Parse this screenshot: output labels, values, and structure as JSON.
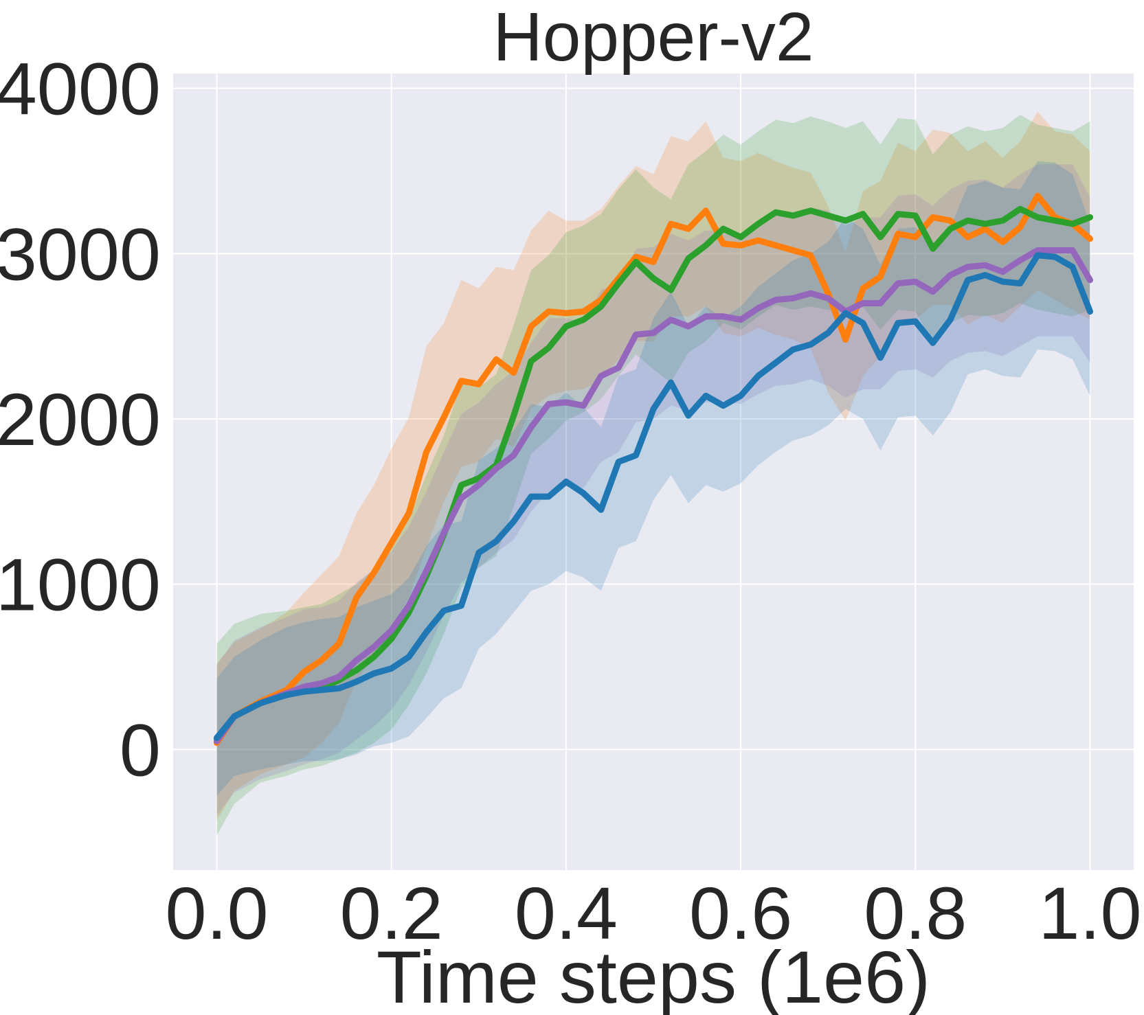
{
  "chart_data": {
    "type": "line",
    "title": "Hopper-v2",
    "xlabel": "Time steps (1e6)",
    "ylabel": "",
    "xlim": [
      -0.05,
      1.05
    ],
    "ylim": [
      -730,
      4090
    ],
    "x_ticks": [
      "0.0",
      "0.2",
      "0.4",
      "0.6",
      "0.8",
      "1.0"
    ],
    "x_tick_values": [
      0.0,
      0.2,
      0.4,
      0.6,
      0.8,
      1.0
    ],
    "y_ticks": [
      "0",
      "1000",
      "2000",
      "3000",
      "4000"
    ],
    "y_tick_values": [
      0,
      1000,
      2000,
      3000,
      4000
    ],
    "grid": true,
    "background": "#EAEAF2",
    "legend": "none",
    "series": [
      {
        "color": "#ff7f0e",
        "x": [
          0.0,
          0.02,
          0.05,
          0.08,
          0.1,
          0.12,
          0.14,
          0.16,
          0.18,
          0.2,
          0.22,
          0.24,
          0.26,
          0.28,
          0.3,
          0.32,
          0.34,
          0.36,
          0.38,
          0.4,
          0.42,
          0.44,
          0.46,
          0.48,
          0.5,
          0.52,
          0.54,
          0.56,
          0.58,
          0.6,
          0.62,
          0.64,
          0.66,
          0.68,
          0.7,
          0.72,
          0.74,
          0.76,
          0.78,
          0.8,
          0.82,
          0.84,
          0.86,
          0.88,
          0.9,
          0.92,
          0.94,
          0.96,
          0.98,
          1.0
        ],
        "y": [
          40,
          200,
          290,
          360,
          470,
          540,
          640,
          920,
          1070,
          1250,
          1430,
          1800,
          2010,
          2230,
          2210,
          2360,
          2280,
          2560,
          2650,
          2640,
          2650,
          2720,
          2850,
          2980,
          2950,
          3180,
          3150,
          3260,
          3060,
          3050,
          3080,
          3050,
          3020,
          2990,
          2760,
          2480,
          2790,
          2860,
          3120,
          3100,
          3220,
          3200,
          3100,
          3150,
          3070,
          3160,
          3350,
          3220,
          3180,
          3090
        ],
        "lower": [
          -430,
          -250,
          -150,
          -90,
          -50,
          40,
          160,
          420,
          560,
          740,
          920,
          1220,
          1500,
          1710,
          1740,
          1880,
          1830,
          2060,
          2140,
          2170,
          2180,
          2230,
          2360,
          2470,
          2470,
          2620,
          2620,
          2680,
          2520,
          2500,
          2550,
          2510,
          2480,
          2430,
          2160,
          1990,
          2260,
          2380,
          2590,
          2600,
          2690,
          2690,
          2570,
          2630,
          2580,
          2680,
          2780,
          2720,
          2660,
          2600
        ],
        "upper": [
          520,
          650,
          730,
          830,
          950,
          1060,
          1170,
          1430,
          1600,
          1820,
          2010,
          2440,
          2580,
          2840,
          2790,
          2920,
          2900,
          3140,
          3260,
          3200,
          3200,
          3270,
          3410,
          3530,
          3480,
          3710,
          3680,
          3800,
          3580,
          3560,
          3610,
          3560,
          3520,
          3490,
          3290,
          3010,
          3380,
          3440,
          3670,
          3620,
          3750,
          3730,
          3620,
          3680,
          3580,
          3680,
          3860,
          3740,
          3720,
          3620
        ]
      },
      {
        "color": "#2ca02c",
        "x": [
          0.0,
          0.02,
          0.05,
          0.08,
          0.1,
          0.12,
          0.14,
          0.16,
          0.18,
          0.2,
          0.22,
          0.24,
          0.26,
          0.28,
          0.3,
          0.32,
          0.34,
          0.36,
          0.38,
          0.4,
          0.42,
          0.44,
          0.46,
          0.48,
          0.5,
          0.52,
          0.54,
          0.56,
          0.58,
          0.6,
          0.62,
          0.64,
          0.66,
          0.68,
          0.7,
          0.72,
          0.74,
          0.76,
          0.78,
          0.8,
          0.82,
          0.84,
          0.86,
          0.88,
          0.9,
          0.92,
          0.94,
          0.96,
          0.98,
          1.0
        ],
        "y": [
          60,
          200,
          280,
          340,
          360,
          370,
          420,
          480,
          560,
          670,
          830,
          1050,
          1300,
          1600,
          1640,
          1720,
          2020,
          2350,
          2430,
          2560,
          2600,
          2680,
          2820,
          2950,
          2850,
          2780,
          2970,
          3050,
          3150,
          3100,
          3180,
          3250,
          3230,
          3260,
          3230,
          3200,
          3240,
          3100,
          3240,
          3230,
          3030,
          3150,
          3200,
          3180,
          3200,
          3270,
          3220,
          3200,
          3180,
          3220
        ],
        "lower": [
          -520,
          -330,
          -200,
          -160,
          -120,
          -100,
          -60,
          -20,
          40,
          120,
          270,
          460,
          700,
          980,
          1100,
          1170,
          1470,
          1790,
          1880,
          1990,
          2040,
          2120,
          2260,
          2390,
          2300,
          2220,
          2400,
          2470,
          2580,
          2540,
          2620,
          2690,
          2660,
          2680,
          2660,
          2640,
          2680,
          2540,
          2660,
          2650,
          2460,
          2580,
          2630,
          2620,
          2640,
          2700,
          2660,
          2640,
          2620,
          2660
        ],
        "upper": [
          640,
          760,
          820,
          840,
          860,
          880,
          940,
          1000,
          1090,
          1230,
          1400,
          1660,
          1900,
          2220,
          2190,
          2270,
          2570,
          2900,
          2990,
          3130,
          3170,
          3240,
          3390,
          3510,
          3400,
          3330,
          3540,
          3620,
          3720,
          3660,
          3740,
          3810,
          3790,
          3830,
          3800,
          3760,
          3800,
          3660,
          3820,
          3810,
          3600,
          3720,
          3770,
          3740,
          3760,
          3840,
          3780,
          3760,
          3740,
          3800
        ]
      },
      {
        "color": "#9467bd",
        "x": [
          0.0,
          0.02,
          0.05,
          0.08,
          0.1,
          0.12,
          0.14,
          0.16,
          0.18,
          0.2,
          0.22,
          0.24,
          0.26,
          0.28,
          0.3,
          0.32,
          0.34,
          0.36,
          0.38,
          0.4,
          0.42,
          0.44,
          0.46,
          0.48,
          0.5,
          0.52,
          0.54,
          0.56,
          0.58,
          0.6,
          0.62,
          0.64,
          0.66,
          0.68,
          0.7,
          0.72,
          0.74,
          0.76,
          0.78,
          0.8,
          0.82,
          0.84,
          0.86,
          0.88,
          0.9,
          0.92,
          0.94,
          0.96,
          0.98,
          1.0
        ],
        "y": [
          50,
          200,
          280,
          340,
          380,
          400,
          440,
          540,
          620,
          720,
          870,
          1080,
          1310,
          1520,
          1600,
          1700,
          1780,
          1950,
          2090,
          2100,
          2080,
          2260,
          2310,
          2510,
          2520,
          2600,
          2560,
          2620,
          2620,
          2600,
          2670,
          2720,
          2730,
          2760,
          2730,
          2650,
          2700,
          2700,
          2820,
          2830,
          2770,
          2870,
          2920,
          2930,
          2890,
          2960,
          3020,
          3020,
          3020,
          2840
        ],
        "lower": [
          -400,
          -260,
          -180,
          -130,
          -90,
          -60,
          -20,
          60,
          140,
          240,
          390,
          590,
          810,
          1010,
          1100,
          1190,
          1270,
          1440,
          1560,
          1590,
          1580,
          1740,
          1800,
          1980,
          2000,
          2080,
          2050,
          2100,
          2110,
          2090,
          2150,
          2200,
          2210,
          2240,
          2200,
          2130,
          2180,
          2180,
          2290,
          2300,
          2250,
          2350,
          2400,
          2410,
          2380,
          2440,
          2500,
          2500,
          2500,
          2340
        ],
        "upper": [
          510,
          660,
          740,
          800,
          850,
          860,
          900,
          1010,
          1090,
          1200,
          1350,
          1560,
          1800,
          2030,
          2100,
          2210,
          2290,
          2460,
          2610,
          2610,
          2590,
          2780,
          2820,
          3030,
          3040,
          3120,
          3080,
          3140,
          3130,
          3120,
          3190,
          3240,
          3250,
          3280,
          3260,
          3170,
          3220,
          3220,
          3350,
          3360,
          3290,
          3390,
          3440,
          3450,
          3400,
          3480,
          3540,
          3540,
          3540,
          3340
        ]
      },
      {
        "color": "#1f77b4",
        "x": [
          0.0,
          0.02,
          0.05,
          0.08,
          0.1,
          0.12,
          0.14,
          0.16,
          0.18,
          0.2,
          0.22,
          0.24,
          0.26,
          0.28,
          0.3,
          0.32,
          0.34,
          0.36,
          0.38,
          0.4,
          0.42,
          0.44,
          0.46,
          0.48,
          0.5,
          0.52,
          0.54,
          0.56,
          0.58,
          0.6,
          0.62,
          0.64,
          0.66,
          0.68,
          0.7,
          0.72,
          0.74,
          0.76,
          0.78,
          0.8,
          0.82,
          0.84,
          0.86,
          0.88,
          0.9,
          0.92,
          0.94,
          0.96,
          0.98,
          1.0
        ],
        "y": [
          70,
          200,
          280,
          330,
          350,
          360,
          370,
          410,
          460,
          490,
          560,
          710,
          840,
          870,
          1190,
          1260,
          1380,
          1530,
          1530,
          1620,
          1550,
          1450,
          1740,
          1780,
          2060,
          2220,
          2020,
          2140,
          2080,
          2140,
          2260,
          2340,
          2420,
          2450,
          2520,
          2640,
          2580,
          2370,
          2580,
          2590,
          2460,
          2600,
          2840,
          2870,
          2830,
          2820,
          2990,
          2980,
          2920,
          2650
        ],
        "lower": [
          -280,
          -160,
          -120,
          -90,
          -70,
          -70,
          -60,
          -30,
          20,
          40,
          80,
          190,
          310,
          370,
          610,
          700,
          830,
          960,
          1000,
          1080,
          1040,
          960,
          1220,
          1260,
          1510,
          1660,
          1490,
          1600,
          1560,
          1610,
          1720,
          1800,
          1870,
          1900,
          1960,
          2060,
          2000,
          1810,
          2010,
          2020,
          1900,
          2040,
          2270,
          2300,
          2260,
          2250,
          2420,
          2410,
          2360,
          2140
        ],
        "upper": [
          430,
          560,
          660,
          740,
          770,
          790,
          800,
          860,
          900,
          940,
          1040,
          1230,
          1360,
          1380,
          1750,
          1820,
          1930,
          2090,
          2070,
          2160,
          2070,
          1950,
          2260,
          2300,
          2610,
          2770,
          2560,
          2680,
          2610,
          2680,
          2800,
          2880,
          2960,
          3000,
          3070,
          3220,
          3150,
          2930,
          3150,
          3160,
          3020,
          3160,
          3410,
          3440,
          3400,
          3390,
          3560,
          3550,
          3480,
          3180
        ]
      }
    ]
  }
}
